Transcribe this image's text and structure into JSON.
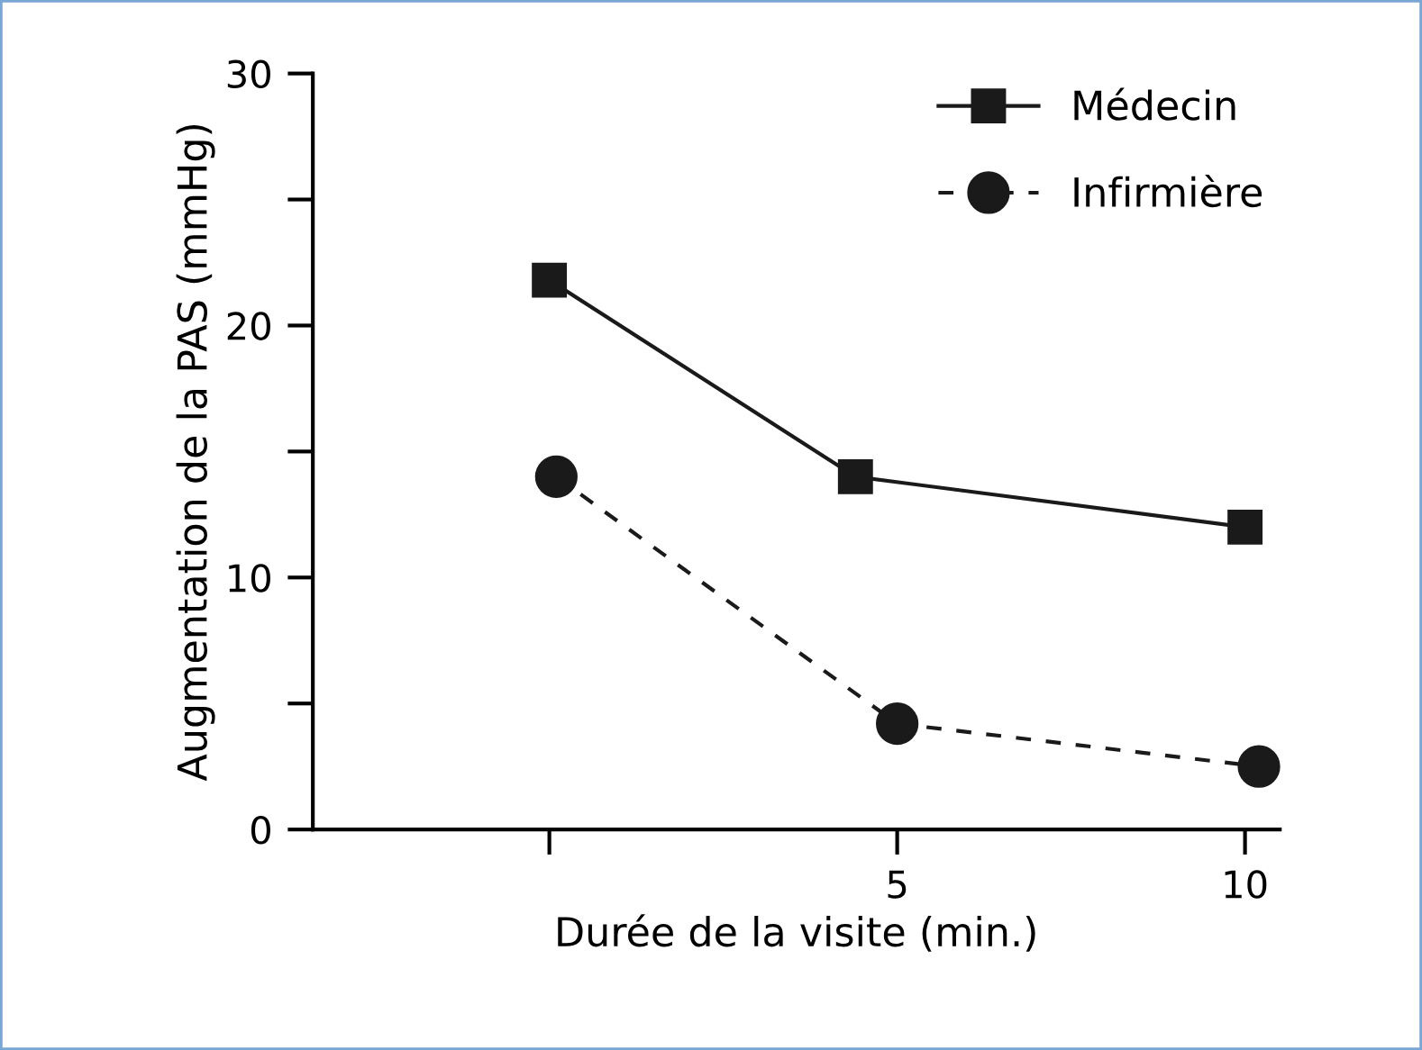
{
  "chart_data": {
    "type": "line",
    "xlabel": "Durée de la visite (min.)",
    "ylabel": "Augmentation de la PAS (mmHg)",
    "xlim": [
      -3.4,
      10.5
    ],
    "ylim": [
      0,
      30
    ],
    "xticks": [
      {
        "value": 0,
        "label": null
      },
      5,
      10
    ],
    "yticks": [
      0,
      {
        "value": 5,
        "label": null
      },
      10,
      {
        "value": 15,
        "label": null
      },
      20,
      {
        "value": 25,
        "label": null
      },
      30
    ],
    "series": [
      {
        "name": "Médecin",
        "color": "#1a1a1a",
        "x": [
          0,
          4.4,
          10
        ],
        "values": [
          21.8,
          14,
          12
        ],
        "marker": "square",
        "line_style": "solid"
      },
      {
        "name": "Infirmière",
        "color": "#1a1a1a",
        "x": [
          0.1,
          5,
          10.2
        ],
        "values": [
          14,
          4.2,
          2.5
        ],
        "marker": "circle",
        "line_style": "dashed"
      }
    ],
    "legend": "top right",
    "grid": false
  }
}
